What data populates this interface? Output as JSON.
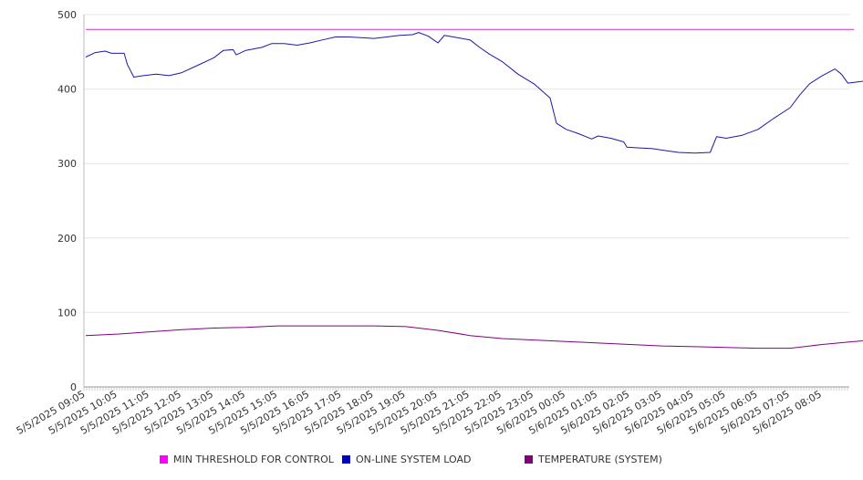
{
  "chart_data": {
    "type": "line",
    "ylim": [
      0,
      500
    ],
    "y_ticks": [
      0,
      100,
      200,
      300,
      400,
      500
    ],
    "x_tick_labels": [
      "5/5/2025 09:05",
      "5/5/2025 10:05",
      "5/5/2025 11:05",
      "5/5/2025 12:05",
      "5/5/2025 13:05",
      "5/5/2025 14:05",
      "5/5/2025 15:05",
      "5/5/2025 16:05",
      "5/5/2025 17:05",
      "5/5/2025 18:05",
      "5/5/2025 19:05",
      "5/5/2025 20:05",
      "5/5/2025 21:05",
      "5/5/2025 22:05",
      "5/5/2025 23:05",
      "5/6/2025 00:05",
      "5/6/2025 01:05",
      "5/6/2025 02:05",
      "5/6/2025 03:05",
      "5/6/2025 04:05",
      "5/6/2025 05:05",
      "5/6/2025 06:05",
      "5/6/2025 07:05",
      "5/6/2025 08:05"
    ],
    "grid": true,
    "legend_position": "bottom",
    "series": [
      {
        "name": "MIN THRESHOLD FOR CONTROL",
        "color": "#cc33cc",
        "points": [
          [
            0,
            480
          ],
          [
            24,
            480
          ]
        ]
      },
      {
        "name": "ON-LINE SYSTEM LOAD",
        "color": "#1a1aa6",
        "points": [
          [
            0,
            443
          ],
          [
            0.3,
            449
          ],
          [
            0.6,
            451
          ],
          [
            0.8,
            448
          ],
          [
            1.2,
            448
          ],
          [
            1.3,
            433
          ],
          [
            1.5,
            416
          ],
          [
            1.8,
            418
          ],
          [
            2.2,
            420
          ],
          [
            2.6,
            418
          ],
          [
            3,
            422
          ],
          [
            3.5,
            432
          ],
          [
            4,
            442
          ],
          [
            4.3,
            452
          ],
          [
            4.6,
            453
          ],
          [
            4.7,
            446
          ],
          [
            5,
            452
          ],
          [
            5.5,
            456
          ],
          [
            5.8,
            461
          ],
          [
            6.2,
            461
          ],
          [
            6.6,
            459
          ],
          [
            7,
            462
          ],
          [
            7.4,
            466
          ],
          [
            7.8,
            470
          ],
          [
            8.2,
            470
          ],
          [
            8.6,
            469
          ],
          [
            9,
            468
          ],
          [
            9.4,
            470
          ],
          [
            9.8,
            472
          ],
          [
            10.2,
            473
          ],
          [
            10.4,
            476
          ],
          [
            10.7,
            471
          ],
          [
            11,
            462
          ],
          [
            11.2,
            472
          ],
          [
            11.6,
            469
          ],
          [
            12,
            466
          ],
          [
            12.3,
            456
          ],
          [
            12.6,
            447
          ],
          [
            13,
            437
          ],
          [
            13.5,
            420
          ],
          [
            14,
            407
          ],
          [
            14.5,
            388
          ],
          [
            14.7,
            354
          ],
          [
            15,
            346
          ],
          [
            15.4,
            340
          ],
          [
            15.8,
            333
          ],
          [
            16,
            337
          ],
          [
            16.4,
            334
          ],
          [
            16.8,
            329
          ],
          [
            16.9,
            322
          ],
          [
            17.3,
            321
          ],
          [
            17.7,
            320
          ],
          [
            18,
            318
          ],
          [
            18.5,
            315
          ],
          [
            19,
            314
          ],
          [
            19.5,
            315
          ],
          [
            19.7,
            336
          ],
          [
            20,
            334
          ],
          [
            20.5,
            338
          ],
          [
            21,
            346
          ],
          [
            21.5,
            361
          ],
          [
            22,
            375
          ],
          [
            22.3,
            392
          ],
          [
            22.6,
            407
          ],
          [
            23,
            418
          ],
          [
            23.4,
            427
          ],
          [
            23.6,
            420
          ],
          [
            23.8,
            408
          ],
          [
            24.2,
            410
          ],
          [
            24.6,
            413
          ],
          [
            24.9,
            409
          ],
          [
            25,
            407
          ]
        ]
      },
      {
        "name": "TEMPERATURE (SYSTEM)",
        "color": "#800080",
        "points": [
          [
            0,
            69
          ],
          [
            1,
            71
          ],
          [
            2,
            74
          ],
          [
            3,
            77
          ],
          [
            4,
            79
          ],
          [
            5,
            80
          ],
          [
            6,
            82
          ],
          [
            7,
            82
          ],
          [
            8,
            82
          ],
          [
            9,
            82
          ],
          [
            10,
            81
          ],
          [
            11,
            76
          ],
          [
            12,
            69
          ],
          [
            13,
            65
          ],
          [
            14,
            63
          ],
          [
            15,
            61
          ],
          [
            16,
            59
          ],
          [
            17,
            57
          ],
          [
            18,
            55
          ],
          [
            19,
            54
          ],
          [
            20,
            53
          ],
          [
            21,
            52
          ],
          [
            22,
            52
          ],
          [
            23,
            57
          ],
          [
            24,
            61
          ],
          [
            24.9,
            64
          ]
        ]
      }
    ]
  }
}
